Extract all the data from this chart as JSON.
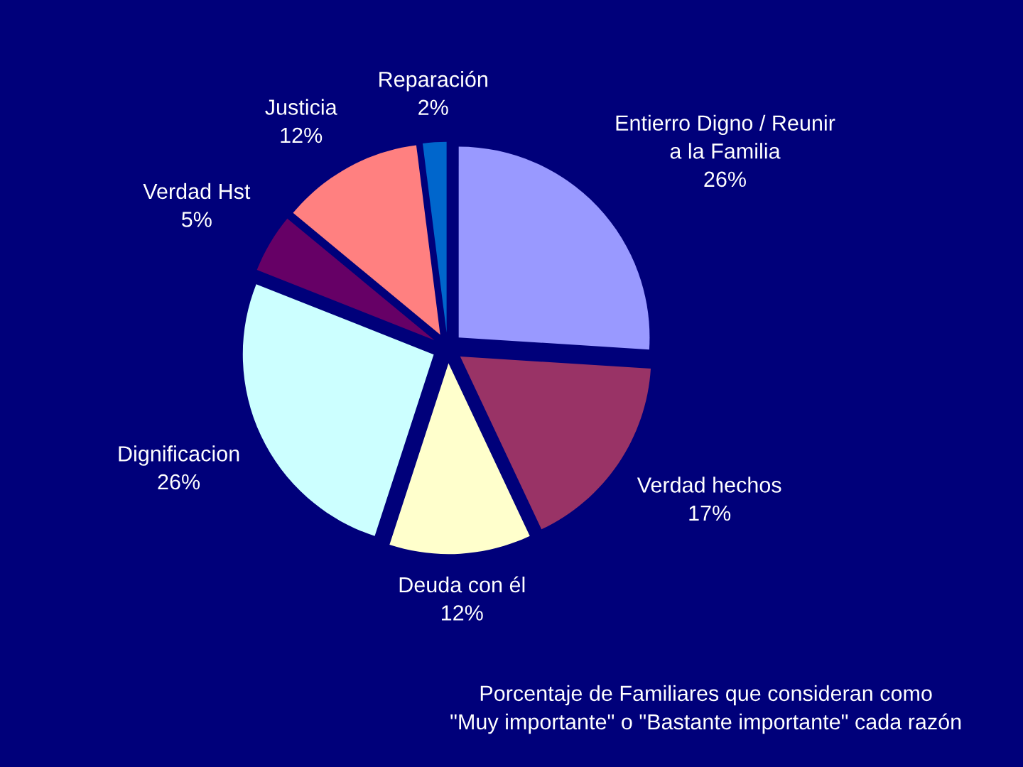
{
  "chart_data": {
    "type": "pie",
    "categories": [
      "Entierro Digno / Reunir\na la Familia",
      "Verdad hechos",
      "Deuda con él",
      "Dignificacion",
      "Verdad Hst",
      "Justicia",
      "Reparación"
    ],
    "values": [
      26,
      17,
      12,
      26,
      5,
      12,
      2
    ],
    "value_labels": [
      "26%",
      "17%",
      "12%",
      "26%",
      "5%",
      "12%",
      "2%"
    ],
    "colors": [
      "#9999ff",
      "#993366",
      "#ffffcc",
      "#ccffff",
      "#660066",
      "#ff8080",
      "#0066cc"
    ],
    "annotations": [
      "Porcentaje de Familiares que consideran como\n\"Muy importante\" o \"Bastante importante\" cada razón"
    ]
  }
}
